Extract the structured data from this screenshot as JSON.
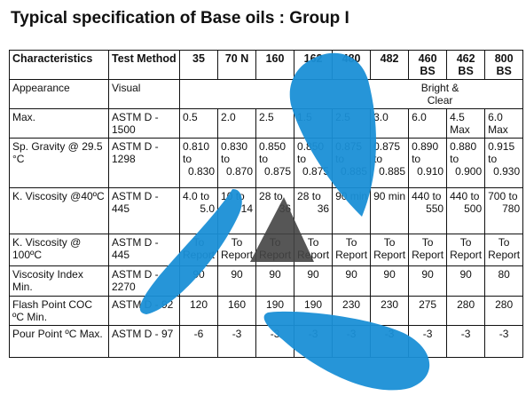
{
  "title": "Typical specification of Base oils : Group I",
  "accent_blue": "#1a8fd6",
  "accent_grey": "#555555",
  "header": {
    "characteristics": "Characteristics",
    "test_method": "Test Method",
    "grades": [
      "35",
      "70 N",
      "160",
      "162",
      "480",
      "482",
      "460 BS",
      "462 BS",
      "800 BS"
    ]
  },
  "rows": [
    {
      "name": "Appearance",
      "method": "Visual",
      "merged": "Bright & Clear"
    },
    {
      "name": "Max.",
      "method": "ASTM D - 1500",
      "values": [
        "0.5",
        "2.0",
        "2.5",
        "1.5",
        "2.5",
        "3.0",
        "6.0",
        "4.5 Max",
        "6.0 Max"
      ]
    },
    {
      "name": "Sp. Gravity @ 29.5 °C",
      "method": "ASTM D - 1298",
      "values": [
        {
          "top": "0.810 to",
          "bottom": "0.830"
        },
        {
          "top": "0.830 to",
          "bottom": "0.870"
        },
        {
          "top": "0.850 to",
          "bottom": "0.875"
        },
        {
          "top": "0.850 to",
          "bottom": "0.875"
        },
        {
          "top": "0.875 to",
          "bottom": "0.885"
        },
        {
          "top": "0.875 to",
          "bottom": "0.885"
        },
        {
          "top": "0.890 to",
          "bottom": "0.910"
        },
        {
          "top": "0.880 to",
          "bottom": "0.900"
        },
        {
          "top": "0.915 to",
          "bottom": "0.930"
        }
      ]
    },
    {
      "name": "K. Viscosity @40ºC",
      "method": "ASTM D - 445",
      "values": [
        {
          "top": "4.0 to",
          "bottom": "5.0"
        },
        {
          "top": "10 to",
          "bottom": "14"
        },
        {
          "top": "28 to",
          "bottom": "36"
        },
        {
          "top": "28 to",
          "bottom": "36"
        },
        {
          "top": "90 min",
          "bottom": ""
        },
        {
          "top": "90 min",
          "bottom": ""
        },
        {
          "top": "440 to",
          "bottom": "550"
        },
        {
          "top": "440 to",
          "bottom": "500"
        },
        {
          "top": "700 to",
          "bottom": "780"
        }
      ]
    },
    {
      "name": "K. Viscosity @ 100ºC",
      "method": "ASTM D - 445",
      "values": [
        "To Report",
        "To Report",
        "To Report",
        "To Report",
        "To Report",
        "To Report",
        "To Report",
        "To Report",
        "To Report"
      ]
    },
    {
      "name": "Viscosity Index Min.",
      "method": "ASTM D - 2270",
      "values": [
        "90",
        "90",
        "90",
        "90",
        "90",
        "90",
        "90",
        "90",
        "80"
      ]
    },
    {
      "name": "Flash Point COC ºC Min.",
      "method": "ASTM D - 92",
      "values": [
        "120",
        "160",
        "190",
        "190",
        "230",
        "230",
        "275",
        "280",
        "280"
      ]
    },
    {
      "name": "Pour Point ºC Max.",
      "method": "ASTM D - 97",
      "values": [
        "-6",
        "-3",
        "-3",
        "-3",
        "-3",
        "-3",
        "-3",
        "-3",
        "-3"
      ]
    }
  ]
}
